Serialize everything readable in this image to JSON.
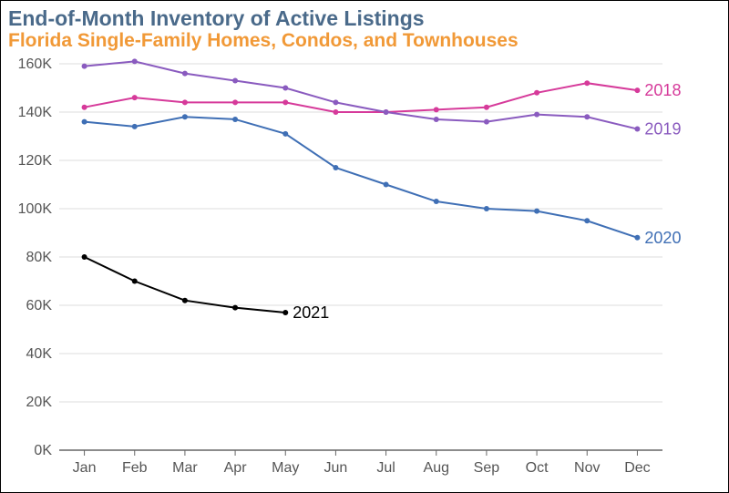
{
  "title": {
    "text": "End-of-Month Inventory of Active Listings",
    "color": "#4a6a8a",
    "fontsize": 23
  },
  "subtitle": {
    "text": "Florida Single-Family Homes, Condos, and Townhouses",
    "color": "#f19937",
    "fontsize": 21
  },
  "chart": {
    "type": "line",
    "background_color": "#ffffff",
    "grid_color": "#dddddd",
    "x_categories": [
      "Jan",
      "Feb",
      "Mar",
      "Apr",
      "May",
      "Jun",
      "Jul",
      "Aug",
      "Sep",
      "Oct",
      "Nov",
      "Dec"
    ],
    "y": {
      "min": 0,
      "max": 160,
      "tick_step": 20,
      "suffix": "K"
    },
    "marker_radius": 3,
    "line_width": 2,
    "tick_fontsize": 16,
    "label_fontsize": 18,
    "series": [
      {
        "name": "2018",
        "color": "#d63a9a",
        "values": [
          142,
          146,
          144,
          144,
          144,
          140,
          140,
          141,
          142,
          148,
          152,
          149
        ]
      },
      {
        "name": "2019",
        "color": "#8a5bbf",
        "values": [
          159,
          161,
          156,
          153,
          150,
          144,
          140,
          137,
          136,
          139,
          138,
          133
        ]
      },
      {
        "name": "2020",
        "color": "#3f6fb5",
        "values": [
          136,
          134,
          138,
          137,
          131,
          117,
          110,
          103,
          100,
          99,
          95,
          88
        ]
      },
      {
        "name": "2021",
        "color": "#000000",
        "values": [
          80,
          70,
          62,
          59,
          57
        ]
      }
    ]
  }
}
